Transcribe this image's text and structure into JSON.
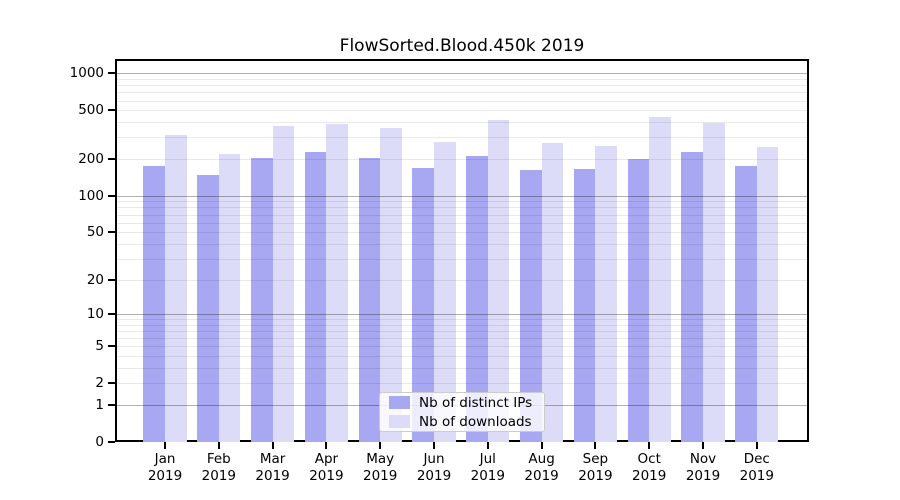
{
  "title": "FlowSorted.Blood.450k 2019",
  "chart_data": {
    "type": "bar",
    "title": "FlowSorted.Blood.450k 2019",
    "categories": [
      "Jan",
      "Feb",
      "Mar",
      "Apr",
      "May",
      "Jun",
      "Jul",
      "Aug",
      "Sep",
      "Oct",
      "Nov",
      "Dec"
    ],
    "category_year": "2019",
    "series": [
      {
        "name": "Nb of distinct IPs",
        "color": "#a7a7f2",
        "values": [
          175,
          148,
          205,
          230,
          205,
          168,
          212,
          162,
          165,
          200,
          230,
          175
        ]
      },
      {
        "name": "Nb of downloads",
        "color": "#dcdcf9",
        "values": [
          315,
          220,
          375,
          385,
          360,
          275,
          420,
          270,
          257,
          440,
          395,
          250
        ]
      }
    ],
    "xlabel": "",
    "ylabel": "",
    "yscale": "log10(value+1)",
    "ylim": [
      0,
      1300
    ],
    "yticks": [
      0,
      1,
      2,
      5,
      10,
      20,
      50,
      100,
      200,
      500,
      1000
    ],
    "major_gridlines": [
      1,
      10,
      100,
      1000
    ],
    "minor_gridlines": [
      2,
      3,
      4,
      5,
      6,
      7,
      8,
      9,
      20,
      30,
      40,
      50,
      60,
      70,
      80,
      90,
      200,
      300,
      400,
      500,
      600,
      700,
      800,
      900
    ],
    "grid": true,
    "legend_position": "lower-center-inside"
  }
}
